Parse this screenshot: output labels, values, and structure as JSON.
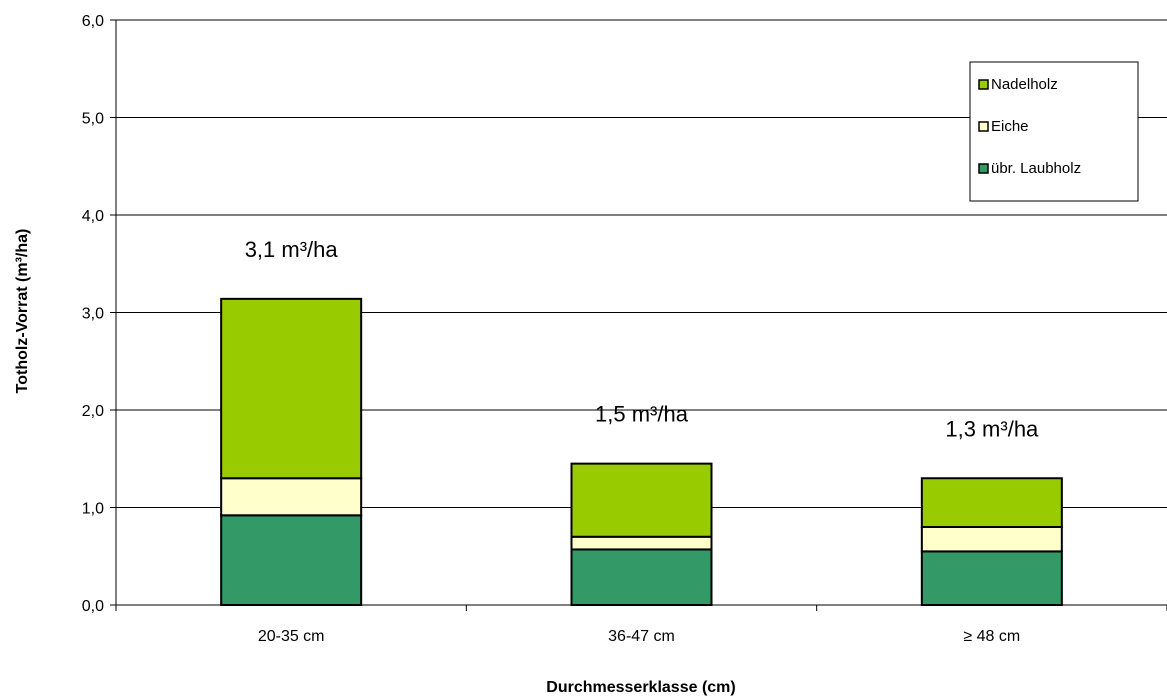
{
  "chart_data": {
    "type": "bar",
    "stacked": true,
    "categories": [
      "20-35 cm",
      "36-47 cm",
      "≥ 48 cm"
    ],
    "series": [
      {
        "name": "übr. Laubholz",
        "values": [
          0.92,
          0.57,
          0.55
        ],
        "color": "#339966"
      },
      {
        "name": "Eiche",
        "values": [
          0.38,
          0.13,
          0.25
        ],
        "color": "#FFFFCC"
      },
      {
        "name": "Nadelholz",
        "values": [
          1.84,
          0.75,
          0.5
        ],
        "color": "#99CC00"
      }
    ],
    "totals_labels": [
      "3,1 m³/ha",
      "1,5 m³/ha",
      "1,3 m³/ha"
    ],
    "xlabel": "Durchmesserklasse  (cm)",
    "ylabel": "Totholz-Vorrat  (m³/ha)",
    "ylim": [
      0,
      6
    ],
    "yticks": [
      "0,0",
      "1,0",
      "2,0",
      "3,0",
      "4,0",
      "5,0",
      "6,0"
    ],
    "grid": true,
    "legend": {
      "position": "top-right",
      "order": [
        "Nadelholz",
        "Eiche",
        "übr. Laubholz"
      ]
    }
  }
}
